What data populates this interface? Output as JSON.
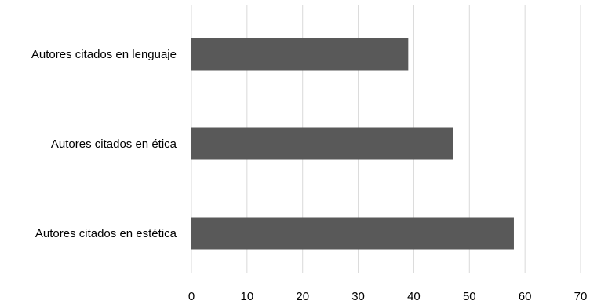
{
  "chart_data": {
    "type": "bar",
    "orientation": "horizontal",
    "categories": [
      "Autores citados en lenguaje",
      "Autores citados en ética",
      "Autores citados en estética"
    ],
    "values": [
      39,
      47,
      58
    ],
    "title": "",
    "xlabel": "",
    "ylabel": "",
    "xlim": [
      0,
      70
    ],
    "xticks": [
      0,
      10,
      20,
      30,
      40,
      50,
      60,
      70
    ],
    "grid": "vertical",
    "legend": "none",
    "bar_color": "#595959",
    "grid_color": "#d9d9d9"
  }
}
